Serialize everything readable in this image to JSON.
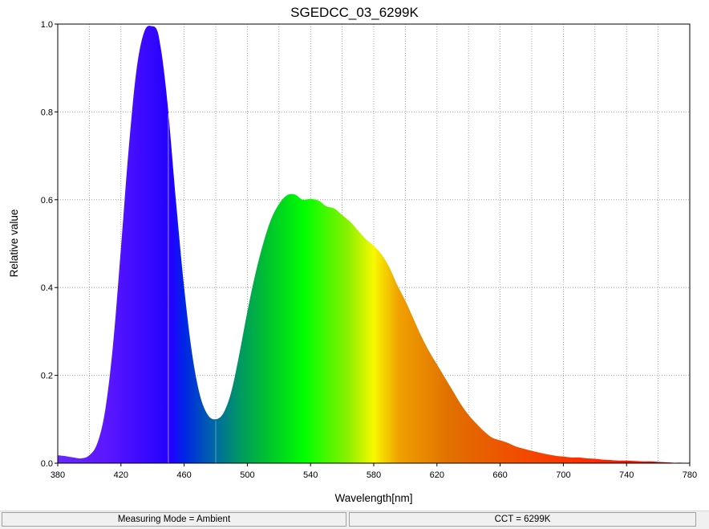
{
  "chart_data": {
    "type": "area",
    "title": "SGEDCC_03_6299K",
    "xlabel": "Wavelength[nm]",
    "ylabel": "Relative value",
    "xlim": [
      380,
      780
    ],
    "ylim": [
      0,
      1.0
    ],
    "x_ticks": [
      380,
      420,
      460,
      500,
      540,
      580,
      620,
      660,
      700,
      740,
      780
    ],
    "x_tick_labels": [
      "380",
      "420",
      "460",
      "500",
      "540",
      "580",
      "620",
      "660",
      "700",
      "740",
      "780"
    ],
    "y_ticks": [
      0,
      0.2,
      0.4,
      0.6,
      0.8,
      1.0
    ],
    "y_tick_labels": [
      "0.0",
      "0.2",
      "0.4",
      "0.6",
      "0.8",
      "1.0"
    ],
    "grid": true,
    "fill": "visible-spectrum-gradient",
    "series": [
      {
        "x": [
          380,
          385,
          390,
          395,
          400,
          405,
          410,
          415,
          420,
          425,
          430,
          435,
          440,
          443,
          445,
          447,
          450,
          455,
          460,
          465,
          470,
          475,
          480,
          485,
          490,
          495,
          500,
          505,
          510,
          515,
          520,
          525,
          530,
          535,
          540,
          545,
          550,
          555,
          560,
          565,
          570,
          575,
          580,
          585,
          590,
          595,
          600,
          605,
          610,
          615,
          620,
          625,
          630,
          635,
          640,
          645,
          650,
          655,
          660,
          665,
          670,
          675,
          680,
          685,
          690,
          695,
          700,
          705,
          710,
          715,
          720,
          725,
          730,
          735,
          740,
          745,
          750,
          755,
          760,
          765,
          770,
          775,
          780
        ],
        "y": [
          0.018,
          0.016,
          0.013,
          0.011,
          0.018,
          0.045,
          0.12,
          0.27,
          0.49,
          0.72,
          0.9,
          0.985,
          0.995,
          0.985,
          0.95,
          0.9,
          0.8,
          0.59,
          0.4,
          0.25,
          0.155,
          0.11,
          0.1,
          0.115,
          0.165,
          0.25,
          0.345,
          0.43,
          0.5,
          0.555,
          0.59,
          0.61,
          0.612,
          0.6,
          0.602,
          0.598,
          0.585,
          0.58,
          0.565,
          0.55,
          0.53,
          0.51,
          0.495,
          0.475,
          0.445,
          0.405,
          0.37,
          0.33,
          0.29,
          0.255,
          0.225,
          0.195,
          0.165,
          0.135,
          0.11,
          0.09,
          0.072,
          0.058,
          0.052,
          0.046,
          0.038,
          0.033,
          0.028,
          0.024,
          0.02,
          0.017,
          0.015,
          0.013,
          0.013,
          0.011,
          0.01,
          0.008,
          0.007,
          0.006,
          0.006,
          0.005,
          0.004,
          0.004,
          0.003,
          0.002,
          0.001,
          0.001,
          0.0
        ]
      }
    ]
  },
  "statusbar": {
    "left_text": "Measuring Mode = Ambient",
    "right_text": "CCT = 6299K"
  }
}
